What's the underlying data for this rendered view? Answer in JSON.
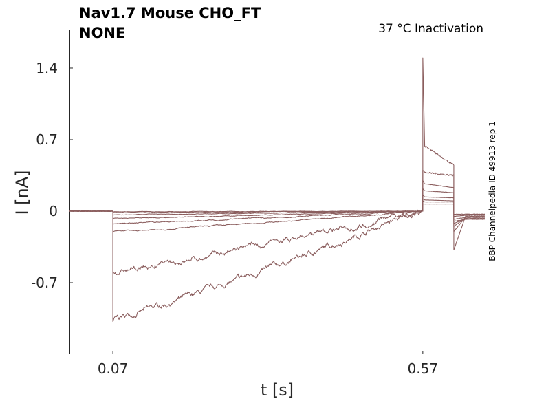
{
  "chart_data": {
    "type": "line",
    "title_line1": "Nav1.7  Mouse  CHO_FT",
    "title_line2": "NONE",
    "condition": "37 °C  Inactivation",
    "side_label": "BBP Channelpedia ID 49913 rep 1",
    "xlabel": "t [s]",
    "ylabel": "I [nA]",
    "xlim": [
      0.0,
      0.67
    ],
    "ylim": [
      -1.4,
      1.77
    ],
    "x_ticks": [
      0.07,
      0.57
    ],
    "x_tick_labels": [
      "0.07",
      "0.57"
    ],
    "y_ticks": [
      -0.7,
      0,
      0.7,
      1.4
    ],
    "y_tick_labels": [
      "-0.7",
      "0",
      "0.7",
      "1.4"
    ],
    "grid": false,
    "color": "#8b5e5e",
    "step_start": 0.07,
    "step_end": 0.57,
    "tail_end": 0.62,
    "series": [
      {
        "peak": -1.08,
        "start": -1.05,
        "end": 0.02,
        "tail_peak": 1.5,
        "tail_start": 0.65,
        "tail_end": 0.45,
        "after_min": -0.38,
        "after": -0.03,
        "noise": 0.03
      },
      {
        "peak": -0.6,
        "start": -0.6,
        "end": 0.01,
        "tail_peak": 0.4,
        "tail_start": 0.38,
        "tail_end": 0.35,
        "after_min": -0.2,
        "after": -0.05,
        "noise": 0.03
      },
      {
        "peak": -0.21,
        "start": -0.2,
        "end": 0.0,
        "tail_peak": 0.3,
        "tail_start": 0.27,
        "tail_end": 0.23,
        "after_min": -0.15,
        "after": -0.06,
        "noise": 0.006
      },
      {
        "peak": -0.13,
        "start": -0.12,
        "end": 0.0,
        "tail_peak": 0.22,
        "tail_start": 0.2,
        "tail_end": 0.18,
        "after_min": -0.12,
        "after": -0.07,
        "noise": 0.005
      },
      {
        "peak": -0.08,
        "start": -0.07,
        "end": 0.0,
        "tail_peak": 0.16,
        "tail_start": 0.14,
        "tail_end": 0.13,
        "after_min": -0.1,
        "after": -0.08,
        "noise": 0.004
      },
      {
        "peak": -0.04,
        "start": -0.035,
        "end": 0.0,
        "tail_peak": 0.12,
        "tail_start": 0.11,
        "tail_end": 0.1,
        "after_min": -0.08,
        "after": -0.06,
        "noise": 0.003
      },
      {
        "peak": -0.02,
        "start": -0.015,
        "end": 0.0,
        "tail_peak": 0.1,
        "tail_start": 0.09,
        "tail_end": 0.09,
        "after_min": -0.05,
        "after": -0.04,
        "noise": 0.003
      },
      {
        "peak": -0.01,
        "start": -0.005,
        "end": 0.0,
        "tail_peak": 0.07,
        "tail_start": 0.07,
        "tail_end": 0.07,
        "after_min": -0.03,
        "after": -0.03,
        "noise": 0.002
      }
    ]
  }
}
